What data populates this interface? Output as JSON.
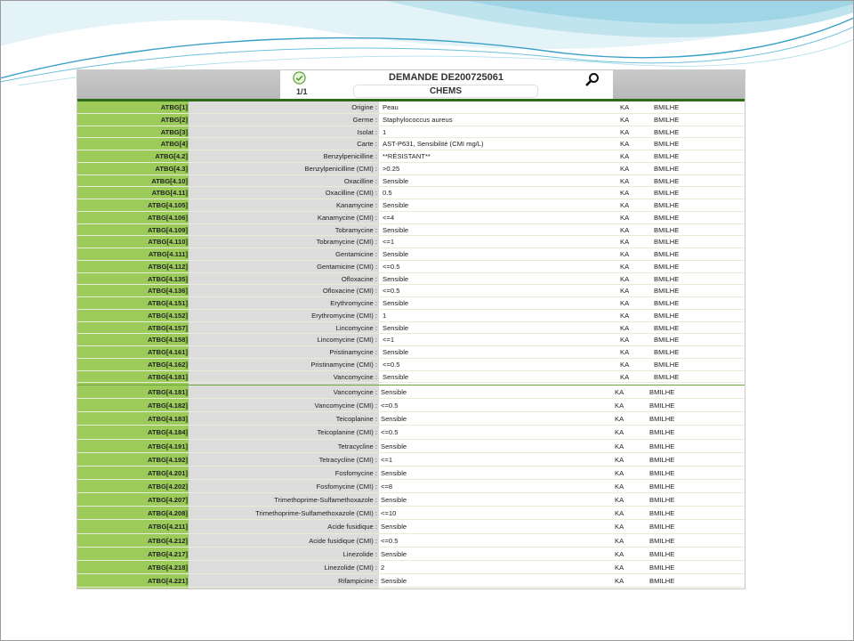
{
  "header": {
    "title": "DEMANDE DE200725061",
    "page_count": "1/1",
    "tab_label": "CHEMS"
  },
  "colors": {
    "accent_green": "#9ccb5a",
    "ka_orange": "#e0802a",
    "bmilhe_green": "#3e9a24"
  },
  "icons": {
    "status": "check-circle-icon",
    "search": "magnifier-search-icon"
  },
  "rows_a": [
    {
      "id": "ATBG[1]",
      "label": "Origine :",
      "value": "Peau",
      "ka": "KA",
      "user": "BMILHE"
    },
    {
      "id": "ATBG[2]",
      "label": "Germe :",
      "value": "Staphylococcus aureus",
      "ka": "KA",
      "user": "BMILHE"
    },
    {
      "id": "ATBG[3]",
      "label": "Isolat :",
      "value": "1",
      "ka": "KA",
      "user": "BMILHE"
    },
    {
      "id": "ATBG[4]",
      "label": "Carte :",
      "value": "AST-P631, Sensibilité (CMI mg/L)",
      "ka": "KA",
      "user": "BMILHE"
    },
    {
      "id": "ATBG[4.2]",
      "label": "Benzylpenicilline :",
      "value": "**RÉSISTANT**",
      "ka": "KA",
      "user": "BMILHE"
    },
    {
      "id": "ATBG[4.3]",
      "label": "Benzylpenicilline (CMI) :",
      "value": ">0.25",
      "ka": "KA",
      "user": "BMILHE"
    },
    {
      "id": "ATBG[4.10]",
      "label": "Oxacilline :",
      "value": "Sensible",
      "ka": "KA",
      "user": "BMILHE"
    },
    {
      "id": "ATBG[4.11]",
      "label": "Oxacilline (CMI) :",
      "value": "0.5",
      "ka": "KA",
      "user": "BMILHE"
    },
    {
      "id": "ATBG[4.105]",
      "label": "Kanamycine :",
      "value": "Sensible",
      "ka": "KA",
      "user": "BMILHE"
    },
    {
      "id": "ATBG[4.106]",
      "label": "Kanamycine (CMI) :",
      "value": "<=4",
      "ka": "KA",
      "user": "BMILHE"
    },
    {
      "id": "ATBG[4.109]",
      "label": "Tobramycine :",
      "value": "Sensible",
      "ka": "KA",
      "user": "BMILHE"
    },
    {
      "id": "ATBG[4.110]",
      "label": "Tobramycine (CMI) :",
      "value": "<=1",
      "ka": "KA",
      "user": "BMILHE"
    },
    {
      "id": "ATBG[4.111]",
      "label": "Gentamicine :",
      "value": "Sensible",
      "ka": "KA",
      "user": "BMILHE"
    },
    {
      "id": "ATBG[4.112]",
      "label": "Gentamicine (CMI) :",
      "value": "<=0.5",
      "ka": "KA",
      "user": "BMILHE"
    },
    {
      "id": "ATBG[4.135]",
      "label": "Ofloxacine :",
      "value": "Sensible",
      "ka": "KA",
      "user": "BMILHE"
    },
    {
      "id": "ATBG[4.136]",
      "label": "Ofloxacine (CMI) :",
      "value": "<=0.5",
      "ka": "KA",
      "user": "BMILHE"
    },
    {
      "id": "ATBG[4.151]",
      "label": "Erythromycine :",
      "value": "Sensible",
      "ka": "KA",
      "user": "BMILHE"
    },
    {
      "id": "ATBG[4.152]",
      "label": "Erythromycine (CMI) :",
      "value": "1",
      "ka": "KA",
      "user": "BMILHE"
    },
    {
      "id": "ATBG[4.157]",
      "label": "Lincomycine :",
      "value": "Sensible",
      "ka": "KA",
      "user": "BMILHE"
    },
    {
      "id": "ATBG[4.158]",
      "label": "Lincomycine (CMI) :",
      "value": "<=1",
      "ka": "KA",
      "user": "BMILHE"
    },
    {
      "id": "ATBG[4.161]",
      "label": "Pristinamycine :",
      "value": "Sensible",
      "ka": "KA",
      "user": "BMILHE"
    },
    {
      "id": "ATBG[4.162]",
      "label": "Pristinamycine (CMI) :",
      "value": "<=0.5",
      "ka": "KA",
      "user": "BMILHE"
    },
    {
      "id": "ATBG[4.181]",
      "label": "Vancomycine :",
      "value": "Sensible",
      "ka": "KA",
      "user": "BMILHE"
    }
  ],
  "rows_b": [
    {
      "id": "ATBG[4.181]",
      "label": "Vancomycine :",
      "value": "Sensible",
      "ka": "KA",
      "user": "BMILHE"
    },
    {
      "id": "ATBG[4.182]",
      "label": "Vancomycine (CMI) :",
      "value": "<=0.5",
      "ka": "KA",
      "user": "BMILHE"
    },
    {
      "id": "ATBG[4.183]",
      "label": "Teicoplanine :",
      "value": "Sensible",
      "ka": "KA",
      "user": "BMILHE"
    },
    {
      "id": "ATBG[4.184]",
      "label": "Teicoplanine (CMI) :",
      "value": "<=0.5",
      "ka": "KA",
      "user": "BMILHE"
    },
    {
      "id": "ATBG[4.191]",
      "label": "Tetracycline :",
      "value": "Sensible",
      "ka": "KA",
      "user": "BMILHE"
    },
    {
      "id": "ATBG[4.192]",
      "label": "Tetracycline (CMI) :",
      "value": "<=1",
      "ka": "KA",
      "user": "BMILHE"
    },
    {
      "id": "ATBG[4.201]",
      "label": "Fosfomycine :",
      "value": "Sensible",
      "ka": "KA",
      "user": "BMILHE"
    },
    {
      "id": "ATBG[4.202]",
      "label": "Fosfomycine (CMI) :",
      "value": "<=8",
      "ka": "KA",
      "user": "BMILHE"
    },
    {
      "id": "ATBG[4.207]",
      "label": "Trimethoprime-Sulfamethoxazole :",
      "value": "Sensible",
      "ka": "KA",
      "user": "BMILHE"
    },
    {
      "id": "ATBG[4.208]",
      "label": "Trimethoprime-Sulfamethoxazole (CMI) :",
      "value": "<=10",
      "ka": "KA",
      "user": "BMILHE"
    },
    {
      "id": "ATBG[4.211]",
      "label": "Acide fusidique :",
      "value": "Sensible",
      "ka": "KA",
      "user": "BMILHE"
    },
    {
      "id": "ATBG[4.212]",
      "label": "Acide fusidique (CMI) :",
      "value": "<=0.5",
      "ka": "KA",
      "user": "BMILHE"
    },
    {
      "id": "ATBG[4.217]",
      "label": "Linezolide :",
      "value": "Sensible",
      "ka": "KA",
      "user": "BMILHE"
    },
    {
      "id": "ATBG[4.218]",
      "label": "Linezolide (CMI) :",
      "value": "2",
      "ka": "KA",
      "user": "BMILHE"
    },
    {
      "id": "ATBG[4.221]",
      "label": "Rifampicine :",
      "value": "Sensible",
      "ka": "KA",
      "user": "BMILHE"
    }
  ]
}
